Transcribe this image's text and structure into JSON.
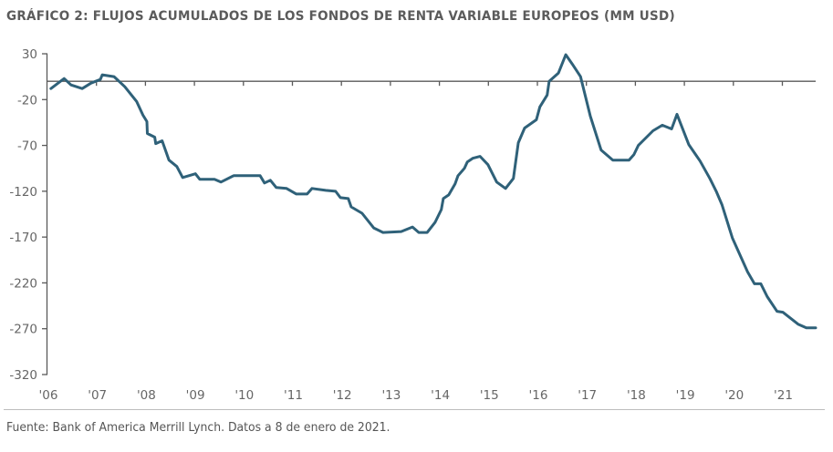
{
  "title": "GRÁFICO 2: FLUJOS ACUMULADOS DE LOS FONDOS DE RENTA VARIABLE EUROPEOS (MM USD)",
  "source": "Fuente: Bank of America Merrill Lynch. Datos a 8 de enero de 2021.",
  "colors": {
    "line": "#2f6179",
    "axis": "#5a5a5a",
    "text": "#5b5b5b"
  },
  "chart_data": {
    "type": "line",
    "title": "GRÁFICO 2: FLUJOS ACUMULADOS DE LOS FONDOS DE RENTA VARIABLE EUROPEOS (MM USD)",
    "xlabel": "",
    "ylabel": "MM USD",
    "ylim": [
      -320,
      30
    ],
    "xlim": [
      2006,
      2021.35
    ],
    "yticks": [
      30,
      -20,
      -70,
      -120,
      -170,
      -220,
      -270,
      -320
    ],
    "ytick_labels": [
      "30",
      "-20",
      "-70",
      "-120",
      "-170",
      "-220",
      "-270",
      "-320"
    ],
    "xticks": [
      2006,
      2007,
      2008,
      2009,
      2010,
      2011,
      2012,
      2013,
      2014,
      2015,
      2016,
      2017,
      2018,
      2019,
      2020,
      2021
    ],
    "xtick_labels": [
      "'06",
      "'07",
      "'08",
      "'09",
      "'10",
      "'11",
      "'12",
      "'13",
      "'14",
      "'15",
      "'16",
      "'17",
      "'18",
      "'19",
      "'20",
      "'21"
    ],
    "zero_line": true,
    "grid": false,
    "legend": "none",
    "series": [
      {
        "name": "Flujos acumulados",
        "x": [
          2006.07,
          2006.34,
          2006.48,
          2006.71,
          2006.89,
          2007.08,
          2007.12,
          2007.36,
          2007.58,
          2007.82,
          2007.95,
          2008.03,
          2008.04,
          2008.19,
          2008.21,
          2008.34,
          2008.48,
          2008.64,
          2008.76,
          2009.02,
          2009.11,
          2009.41,
          2009.54,
          2009.8,
          2010.02,
          2010.34,
          2010.43,
          2010.55,
          2010.67,
          2010.88,
          2011.08,
          2011.3,
          2011.4,
          2011.68,
          2011.88,
          2011.98,
          2012.14,
          2012.2,
          2012.42,
          2012.66,
          2012.85,
          2013.22,
          2013.45,
          2013.58,
          2013.75,
          2013.91,
          2014.04,
          2014.08,
          2014.19,
          2014.32,
          2014.38,
          2014.51,
          2014.57,
          2014.68,
          2014.83,
          2014.99,
          2015.17,
          2015.35,
          2015.51,
          2015.61,
          2015.74,
          2015.98,
          2016.05,
          2016.2,
          2016.24,
          2016.43,
          2016.58,
          2016.71,
          2016.88,
          2017.08,
          2017.3,
          2017.54,
          2017.87,
          2017.97,
          2018.06,
          2018.36,
          2018.55,
          2018.74,
          2018.85,
          2019.09,
          2019.32,
          2019.52,
          2019.65,
          2019.77,
          2019.98,
          2020.29,
          2020.43,
          2020.56,
          2020.69,
          2020.89,
          2021.01,
          2021.32,
          2021.49,
          2021.68
        ],
        "values": [
          -8,
          3,
          -4,
          -8,
          -2,
          2,
          7,
          5,
          -6,
          -22,
          -37,
          -44,
          -57,
          -61,
          -68,
          -65,
          -86,
          -93,
          -105,
          -101,
          -107,
          -107,
          -110,
          -103,
          -103,
          -103,
          -111,
          -108,
          -116,
          -117,
          -123,
          -123,
          -117,
          -119,
          -120,
          -127,
          -128,
          -137,
          -144,
          -160,
          -165,
          -164,
          -159,
          -165,
          -165,
          -154,
          -140,
          -128,
          -124,
          -112,
          -103,
          -95,
          -88,
          -84,
          -82,
          -91,
          -110,
          -117,
          -106,
          -67,
          -51,
          -42,
          -28,
          -15,
          0,
          9,
          29,
          19,
          5,
          -38,
          -75,
          -86,
          -86,
          -80,
          -70,
          -54,
          -48,
          -52,
          -36,
          -69,
          -87,
          -106,
          -120,
          -135,
          -171,
          -208,
          -221,
          -221,
          -235,
          -251,
          -252,
          -265,
          -269,
          -269
        ]
      }
    ]
  }
}
